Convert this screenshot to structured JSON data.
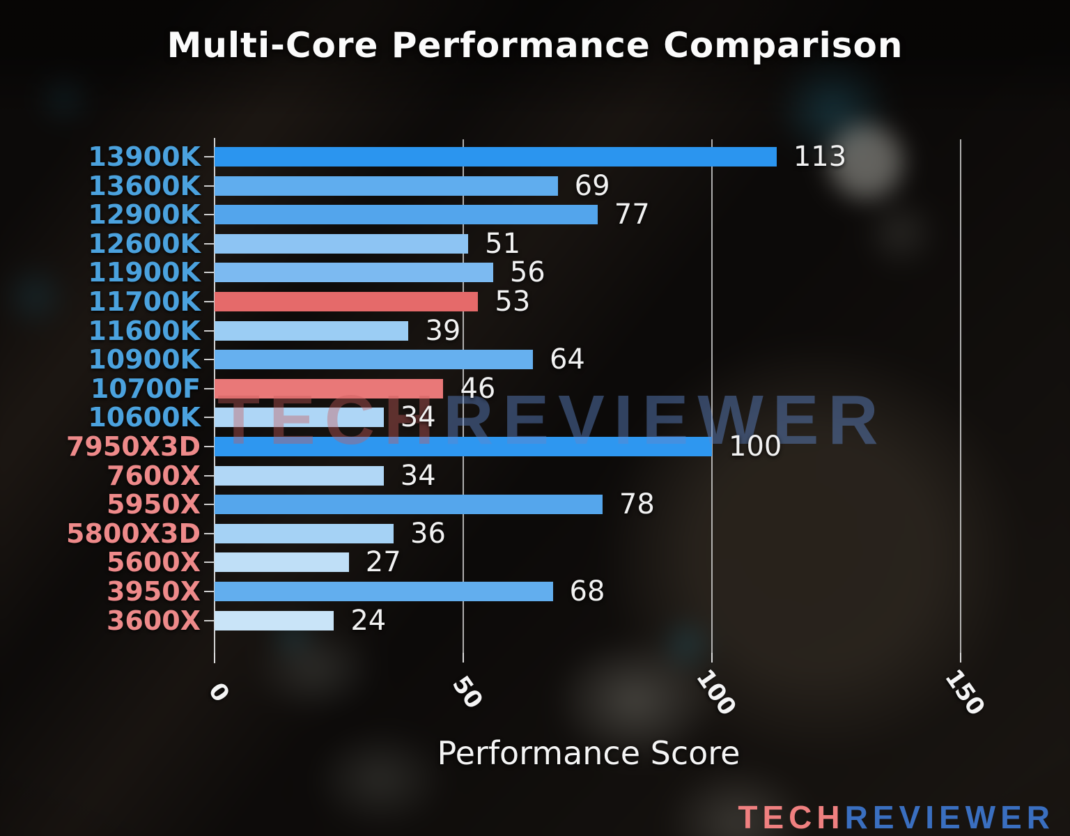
{
  "title": "Multi-Core Performance Comparison",
  "watermark": {
    "tech": "TECH",
    "reviewer": "REVIEWER"
  },
  "logo": {
    "tech": "TECH",
    "reviewer": "REVIEWER"
  },
  "colors": {
    "intel_label": "#4ba2de",
    "amd_label": "#ee8a8a",
    "highlight_red": "#e56a6a",
    "axis": "#d0d0d0",
    "value_text": "#f2f2f2",
    "logo_tech": "#f08080",
    "logo_reviewer": "#3a6fc0"
  },
  "chart_data": {
    "type": "bar",
    "orientation": "horizontal",
    "title": "Multi-Core Performance Comparison",
    "xlabel": "Performance Score",
    "xlim": [
      0,
      158
    ],
    "x_ticks": [
      0,
      50,
      100,
      150
    ],
    "grid": true,
    "legend": "none",
    "categories": [
      "13900K",
      "13600K",
      "12900K",
      "12600K",
      "11900K",
      "11700K",
      "11600K",
      "10900K",
      "10700F",
      "10600K",
      "7950X3D",
      "7600X",
      "5950X",
      "5800X3D",
      "5600X",
      "3950X",
      "3600X"
    ],
    "values": [
      113,
      69,
      77,
      51,
      56,
      53,
      39,
      64,
      46,
      34,
      100,
      34,
      78,
      36,
      27,
      68,
      24
    ],
    "brands": [
      "intel",
      "intel",
      "intel",
      "intel",
      "intel",
      "intel",
      "intel",
      "intel",
      "intel",
      "intel",
      "amd",
      "amd",
      "amd",
      "amd",
      "amd",
      "amd",
      "amd"
    ],
    "bar_colors": [
      "#2b95ef",
      "#60adee",
      "#53a5ec",
      "#8dc4f3",
      "#7cbaf1",
      "#e56a6a",
      "#9bcdf4",
      "#66b0ef",
      "#e97878",
      "#aed6f6",
      "#2e97f0",
      "#b1d7f6",
      "#55a6ec",
      "#a5d2f5",
      "#bfdff7",
      "#62aeee",
      "#c9e4f8"
    ],
    "highlighted": [
      "11700K",
      "10700F"
    ]
  }
}
